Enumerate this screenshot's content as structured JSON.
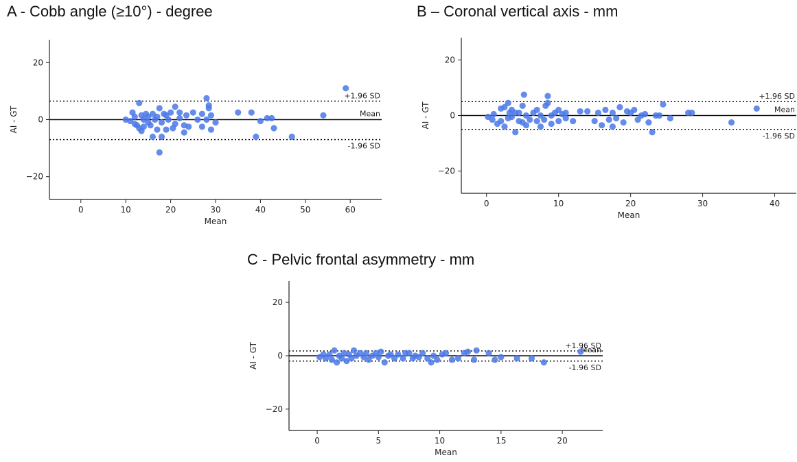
{
  "colors": {
    "point": "#4a78e6",
    "axis": "#222222",
    "line": "#111111"
  },
  "chart_data": [
    {
      "type": "scatter",
      "title": "A - Cobb angle  (≥10°) - degree",
      "xlabel": "Mean",
      "ylabel": "AI - GT",
      "xlim": [
        -7,
        67
      ],
      "ylim": [
        -28,
        28
      ],
      "xticks": [
        0,
        10,
        20,
        30,
        40,
        50,
        60
      ],
      "yticks": [
        -20,
        0,
        20
      ],
      "mean": 0,
      "upper_loa": 6.5,
      "lower_loa": -7,
      "ref_labels": {
        "upper": "+1.96 SD",
        "mean": "Mean",
        "lower": "-1.96 SD"
      },
      "points": [
        [
          10,
          0
        ],
        [
          11,
          -0.5
        ],
        [
          11.5,
          2.5
        ],
        [
          12,
          -1.5
        ],
        [
          12,
          1
        ],
        [
          12.5,
          -2
        ],
        [
          13,
          5.8
        ],
        [
          13,
          -3
        ],
        [
          13.5,
          -4
        ],
        [
          13.5,
          1.5
        ],
        [
          14,
          0
        ],
        [
          14,
          -2.5
        ],
        [
          14.5,
          2
        ],
        [
          15,
          -1
        ],
        [
          15,
          1
        ],
        [
          15.5,
          -2
        ],
        [
          16,
          2
        ],
        [
          16,
          -6
        ],
        [
          16.5,
          0
        ],
        [
          17,
          -3.5
        ],
        [
          17,
          1
        ],
        [
          17.5,
          -11.5
        ],
        [
          17.5,
          4
        ],
        [
          18,
          -6
        ],
        [
          18,
          -1
        ],
        [
          18.5,
          2
        ],
        [
          19,
          -3.5
        ],
        [
          19,
          1.5
        ],
        [
          19.5,
          0
        ],
        [
          20,
          2.5
        ],
        [
          20.5,
          -3
        ],
        [
          21,
          4.5
        ],
        [
          21,
          -1.5
        ],
        [
          22,
          0.5
        ],
        [
          22,
          2.5
        ],
        [
          23,
          -2
        ],
        [
          23,
          -4.5
        ],
        [
          23.5,
          1.5
        ],
        [
          24,
          -2.5
        ],
        [
          25,
          2.5
        ],
        [
          26,
          0
        ],
        [
          27,
          2
        ],
        [
          27,
          -2.5
        ],
        [
          28,
          7.5
        ],
        [
          28,
          0
        ],
        [
          28.5,
          5
        ],
        [
          28.5,
          4
        ],
        [
          29,
          -3.5
        ],
        [
          29,
          1.5
        ],
        [
          30,
          -1
        ],
        [
          35,
          2.5
        ],
        [
          38,
          2.5
        ],
        [
          39,
          -6
        ],
        [
          40,
          -0.5
        ],
        [
          41.5,
          0.5
        ],
        [
          42.5,
          0.5
        ],
        [
          43,
          -3
        ],
        [
          47,
          -6
        ],
        [
          54,
          1.5
        ],
        [
          59,
          11
        ]
      ]
    },
    {
      "type": "scatter",
      "title": "B – Coronal vertical axis - mm",
      "xlabel": "Mean",
      "ylabel": "AI - GT",
      "xlim": [
        -3.5,
        43
      ],
      "ylim": [
        -28,
        28
      ],
      "xticks": [
        0,
        10,
        20,
        30,
        40
      ],
      "yticks": [
        -20,
        0,
        20
      ],
      "mean": 0,
      "upper_loa": 5,
      "lower_loa": -5,
      "ref_labels": {
        "upper": "+1.96 SD",
        "mean": "Mean",
        "lower": "-1.96 SD"
      },
      "points": [
        [
          0.2,
          -0.5
        ],
        [
          0.8,
          -1.5
        ],
        [
          1,
          0.5
        ],
        [
          1.5,
          -3
        ],
        [
          2,
          2.5
        ],
        [
          2,
          -2
        ],
        [
          2.5,
          -4
        ],
        [
          2.5,
          3
        ],
        [
          3,
          4.5
        ],
        [
          3,
          -1
        ],
        [
          3.2,
          1
        ],
        [
          3.5,
          2
        ],
        [
          3.5,
          -0.5
        ],
        [
          4,
          1
        ],
        [
          4,
          -6
        ],
        [
          4.5,
          1
        ],
        [
          4.5,
          -2
        ],
        [
          5,
          -2.5
        ],
        [
          5,
          3.5
        ],
        [
          5.2,
          7.5
        ],
        [
          5.5,
          -3.5
        ],
        [
          5.5,
          0
        ],
        [
          6,
          -1.5
        ],
        [
          6.5,
          1
        ],
        [
          7,
          -2
        ],
        [
          7,
          2
        ],
        [
          7.5,
          0
        ],
        [
          7.5,
          -4
        ],
        [
          8,
          -1.5
        ],
        [
          8.2,
          3.5
        ],
        [
          8.5,
          7
        ],
        [
          8.5,
          4.5
        ],
        [
          9,
          -3
        ],
        [
          9,
          0
        ],
        [
          9.5,
          1
        ],
        [
          10,
          -2
        ],
        [
          10,
          2
        ],
        [
          10.5,
          0.5
        ],
        [
          11,
          1
        ],
        [
          11,
          -1
        ],
        [
          12,
          -2
        ],
        [
          13,
          1.5
        ],
        [
          14,
          1.5
        ],
        [
          15,
          -2
        ],
        [
          15.5,
          1
        ],
        [
          16,
          -3.5
        ],
        [
          16.5,
          2
        ],
        [
          17,
          -1.5
        ],
        [
          17.5,
          -4
        ],
        [
          17.5,
          1
        ],
        [
          18,
          -1
        ],
        [
          18.5,
          3
        ],
        [
          19,
          -2.5
        ],
        [
          19.5,
          1.5
        ],
        [
          20,
          1
        ],
        [
          20.5,
          2
        ],
        [
          21,
          -1.5
        ],
        [
          21.5,
          0
        ],
        [
          22,
          0.5
        ],
        [
          22.5,
          -2.5
        ],
        [
          23,
          -6
        ],
        [
          23.5,
          0
        ],
        [
          24,
          0
        ],
        [
          24.5,
          4
        ],
        [
          25.5,
          -1
        ],
        [
          28,
          1
        ],
        [
          28.5,
          1
        ],
        [
          34,
          -2.5
        ],
        [
          37.5,
          2.5
        ]
      ]
    },
    {
      "type": "scatter",
      "title": "C - Pelvic frontal asymmetry - mm",
      "xlabel": "Mean",
      "ylabel": "AI - GT",
      "xlim": [
        -2.3,
        23.3
      ],
      "ylim": [
        -28,
        28
      ],
      "xticks": [
        0,
        5,
        10,
        15,
        20
      ],
      "yticks": [
        -20,
        0,
        20
      ],
      "mean": 0,
      "upper_loa": 1.8,
      "lower_loa": -2,
      "ref_labels": {
        "upper": "+1.96 SD",
        "mean": "Mean",
        "lower": "-1.96 SD"
      },
      "points": [
        [
          0.2,
          -0.5
        ],
        [
          0.5,
          0.5
        ],
        [
          0.7,
          -1
        ],
        [
          1,
          0.5
        ],
        [
          1.2,
          -1.5
        ],
        [
          1.4,
          2
        ],
        [
          1.6,
          -2.5
        ],
        [
          1.8,
          0
        ],
        [
          2,
          -1
        ],
        [
          2.2,
          1
        ],
        [
          2.4,
          -2
        ],
        [
          2.6,
          0.5
        ],
        [
          2.8,
          -1
        ],
        [
          3,
          2
        ],
        [
          3.2,
          0
        ],
        [
          3.5,
          1
        ],
        [
          3.8,
          -0.5
        ],
        [
          4,
          1
        ],
        [
          4.2,
          -1.5
        ],
        [
          4.5,
          0
        ],
        [
          4.8,
          1
        ],
        [
          5,
          -0.5
        ],
        [
          5.2,
          1.5
        ],
        [
          5.5,
          -2.5
        ],
        [
          5.8,
          0
        ],
        [
          6,
          0.5
        ],
        [
          6.3,
          -1
        ],
        [
          6.6,
          0.5
        ],
        [
          7,
          -1
        ],
        [
          7.2,
          1
        ],
        [
          7.5,
          1
        ],
        [
          7.8,
          -1
        ],
        [
          8,
          0
        ],
        [
          8.3,
          -0.5
        ],
        [
          8.6,
          1
        ],
        [
          9,
          -1
        ],
        [
          9.3,
          -2.5
        ],
        [
          9.5,
          0
        ],
        [
          9.8,
          -1.5
        ],
        [
          10.2,
          0.5
        ],
        [
          10.5,
          1
        ],
        [
          11,
          -1.5
        ],
        [
          11.5,
          -1
        ],
        [
          12,
          1
        ],
        [
          12.3,
          1.5
        ],
        [
          12.8,
          -1.5
        ],
        [
          13,
          2
        ],
        [
          14,
          1
        ],
        [
          14.5,
          -1.5
        ],
        [
          15,
          -0.5
        ],
        [
          16.3,
          -1
        ],
        [
          17.5,
          -1
        ],
        [
          18.5,
          -2.5
        ],
        [
          21.5,
          1.5
        ]
      ]
    }
  ]
}
